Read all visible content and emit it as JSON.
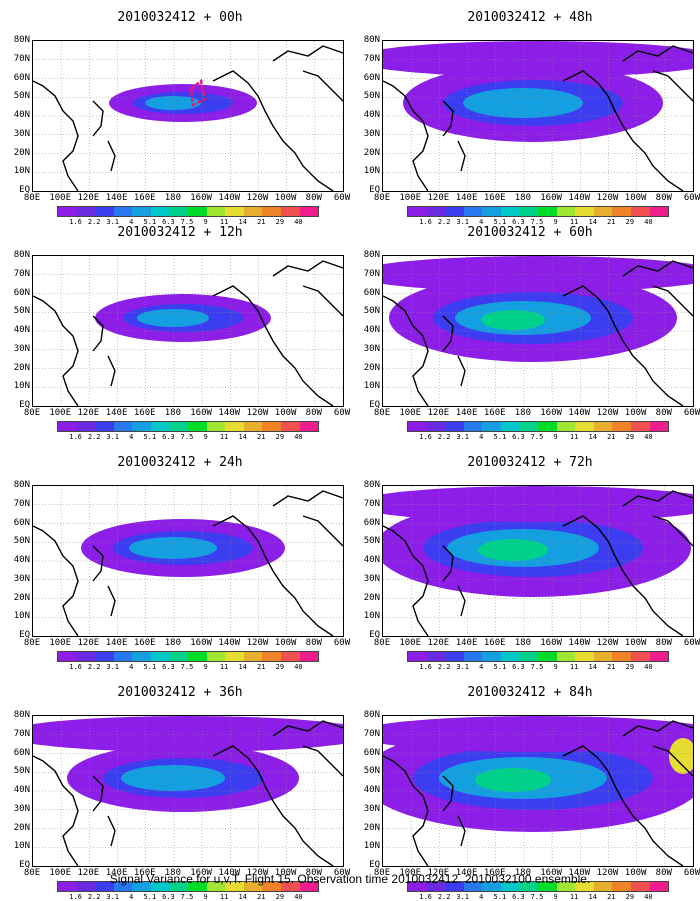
{
  "panels": [
    {
      "title": "2010032412 + 00h",
      "intensity": 1
    },
    {
      "title": "2010032412 + 12h",
      "intensity": 2
    },
    {
      "title": "2010032412 + 24h",
      "intensity": 3
    },
    {
      "title": "2010032412 + 36h",
      "intensity": 4
    },
    {
      "title": "2010032412 + 48h",
      "intensity": 5
    },
    {
      "title": "2010032412 + 60h",
      "intensity": 6
    },
    {
      "title": "2010032412 + 72h",
      "intensity": 7
    },
    {
      "title": "2010032412 + 84h",
      "intensity": 8
    }
  ],
  "lat_labels": [
    "80N",
    "70N",
    "60N",
    "50N",
    "40N",
    "30N",
    "20N",
    "10N",
    "EQ"
  ],
  "lon_labels": [
    "80E",
    "100E",
    "120E",
    "140E",
    "160E",
    "180",
    "160W",
    "140W",
    "120W",
    "100W",
    "80W",
    "60W"
  ],
  "colorbar_levels": [
    "1.6",
    "2.2",
    "3.1",
    "4",
    "5.1",
    "6.3",
    "7.5",
    "9",
    "11",
    "14",
    "21",
    "29",
    "40"
  ],
  "colorbar_colors": [
    "#8c1ee8",
    "#6a2ae0",
    "#3c3cf0",
    "#2878f0",
    "#14a0e0",
    "#00c8c8",
    "#00d28c",
    "#00dc28",
    "#a0e632",
    "#e6dc32",
    "#e6af2d",
    "#f08228",
    "#f05050",
    "#f01e8c"
  ],
  "footer": "Signal Variance for u,v,T. Flight 15. Observation time 2010032412. 2010032100 ensemble."
}
